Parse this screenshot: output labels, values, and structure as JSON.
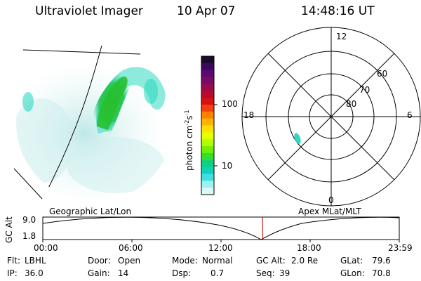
{
  "header": {
    "instrument": "Ultraviolet Imager",
    "date": "10 Apr 07",
    "time": "14:48:16 UT"
  },
  "colorbar": {
    "label": "photon cm",
    "label_sup1": "-2",
    "label_mid": "s",
    "label_sup2": "-1",
    "ticks": [
      "100",
      "10"
    ],
    "colors": [
      "#1a0a2e",
      "#3a0a5a",
      "#5a0a70",
      "#7a0a6a",
      "#9a0a4a",
      "#b80a2a",
      "#d81010",
      "#f04010",
      "#ff8000",
      "#ffb000",
      "#ffe000",
      "#e8ff00",
      "#b0ff00",
      "#70f000",
      "#30e030",
      "#10d080",
      "#10d0c0",
      "#40e0e0",
      "#a0f0f0",
      "#d8f8f8"
    ]
  },
  "polar_labels": {
    "mlt_12": "12",
    "mlt_18": "18",
    "mlt_6": "6",
    "mlt_0": "0",
    "lat_60": "60",
    "lat_70": "70",
    "lat_80": "80"
  },
  "map_labels": {
    "left": "Geographic Lat/Lon",
    "right": "Apex MLat/MLT"
  },
  "altitude_plot": {
    "ylabel": "GC Alt",
    "ymax": "9.0",
    "ymin": "1.8",
    "xticks": [
      "00:00",
      "06:00",
      "12:00",
      "18:00",
      "23:59"
    ],
    "marker_fraction": 0.617
  },
  "info": {
    "flt_label": "Flt:",
    "flt_value": "LBHL",
    "ip_label": "IP:",
    "ip_value": "36.0",
    "door_label": "Door:",
    "door_value": "Open",
    "gain_label": "Gain:",
    "gain_value": "14",
    "mode_label": "Mode:",
    "mode_value": "Normal",
    "dsp_label": "Dsp:",
    "dsp_value": "0.7",
    "gcalt_label": "GC Alt:",
    "gcalt_value": "2.0 Re",
    "seq_label": "Seq:",
    "seq_value": "39",
    "glat_label": "GLat:",
    "glat_value": "79.6",
    "glon_label": "GLon:",
    "glon_value": "70.8"
  },
  "colors": {
    "marker": "#cc0000",
    "aurora_bright": "#20c040",
    "aurora_mid": "#30d8c0",
    "aurora_faint": "#c8ecec"
  }
}
